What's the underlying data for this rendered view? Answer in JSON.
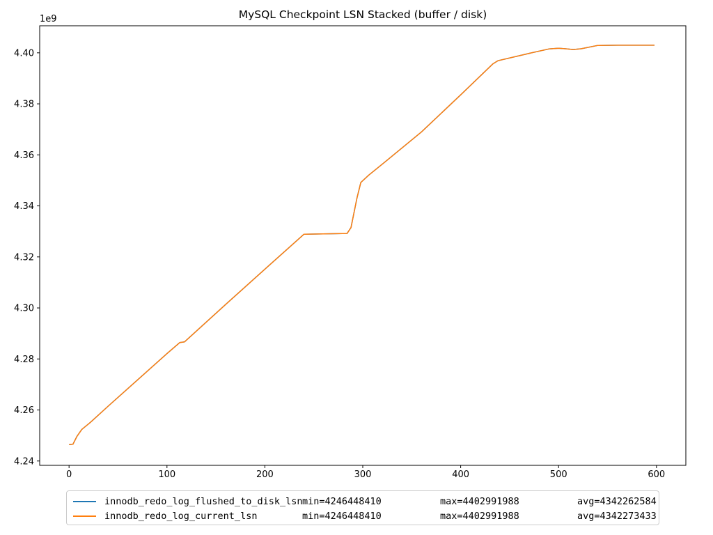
{
  "chart_data": {
    "type": "line",
    "title": "MySQL Checkpoint LSN Stacked (buffer / disk)",
    "y_offset_label": "1e9",
    "grid": false,
    "legend_position": "below-axes",
    "xlim": [
      -30,
      630
    ],
    "ylim": [
      4238300000,
      4410600000
    ],
    "xticks": [
      {
        "value": 0,
        "label": "0"
      },
      {
        "value": 100,
        "label": "100"
      },
      {
        "value": 200,
        "label": "200"
      },
      {
        "value": 300,
        "label": "300"
      },
      {
        "value": 400,
        "label": "400"
      },
      {
        "value": 500,
        "label": "500"
      },
      {
        "value": 600,
        "label": "600"
      }
    ],
    "yticks": [
      {
        "value": 4240000000,
        "label": "4.24"
      },
      {
        "value": 4260000000,
        "label": "4.26"
      },
      {
        "value": 4280000000,
        "label": "4.28"
      },
      {
        "value": 4300000000,
        "label": "4.30"
      },
      {
        "value": 4320000000,
        "label": "4.32"
      },
      {
        "value": 4340000000,
        "label": "4.34"
      },
      {
        "value": 4360000000,
        "label": "4.36"
      },
      {
        "value": 4380000000,
        "label": "4.38"
      },
      {
        "value": 4400000000,
        "label": "4.40"
      }
    ],
    "series": [
      {
        "name": "innodb_redo_log_flushed_to_disk_lsn",
        "color": "#1f77b4",
        "min": 4246448410,
        "max": 4402991988,
        "avg": 4342262584,
        "points": [
          [
            0,
            4246448410
          ],
          [
            4,
            4246600000
          ],
          [
            8,
            4249600000
          ],
          [
            13,
            4252400000
          ],
          [
            22,
            4255200000
          ],
          [
            40,
            4261500000
          ],
          [
            70,
            4271800000
          ],
          [
            100,
            4282100000
          ],
          [
            113,
            4286400000
          ],
          [
            118,
            4286700000
          ],
          [
            160,
            4301400000
          ],
          [
            200,
            4315200000
          ],
          [
            240,
            4328900000
          ],
          [
            284,
            4329200000
          ],
          [
            288,
            4331500000
          ],
          [
            294,
            4343000000
          ],
          [
            298,
            4349200000
          ],
          [
            306,
            4352000000
          ],
          [
            322,
            4357000000
          ],
          [
            360,
            4369000000
          ],
          [
            400,
            4383500000
          ],
          [
            433,
            4395700000
          ],
          [
            438,
            4396900000
          ],
          [
            470,
            4399800000
          ],
          [
            490,
            4401500000
          ],
          [
            500,
            4401800000
          ],
          [
            507,
            4401600000
          ],
          [
            515,
            4401300000
          ],
          [
            523,
            4401600000
          ],
          [
            540,
            4402900000
          ],
          [
            560,
            4402991988
          ],
          [
            598,
            4402991988
          ]
        ]
      },
      {
        "name": "innodb_redo_log_current_lsn",
        "color": "#ff7f0e",
        "min": 4246448410,
        "max": 4402991988,
        "avg": 4342273433,
        "points": [
          [
            0,
            4246448410
          ],
          [
            4,
            4246600000
          ],
          [
            8,
            4249600000
          ],
          [
            13,
            4252400000
          ],
          [
            22,
            4255200000
          ],
          [
            40,
            4261500000
          ],
          [
            70,
            4271800000
          ],
          [
            100,
            4282100000
          ],
          [
            113,
            4286400000
          ],
          [
            118,
            4286700000
          ],
          [
            160,
            4301400000
          ],
          [
            200,
            4315200000
          ],
          [
            240,
            4328900000
          ],
          [
            284,
            4329200000
          ],
          [
            288,
            4331500000
          ],
          [
            294,
            4343000000
          ],
          [
            298,
            4349200000
          ],
          [
            306,
            4352000000
          ],
          [
            322,
            4357000000
          ],
          [
            360,
            4369000000
          ],
          [
            400,
            4383500000
          ],
          [
            433,
            4395700000
          ],
          [
            438,
            4396900000
          ],
          [
            470,
            4399800000
          ],
          [
            490,
            4401500000
          ],
          [
            500,
            4401800000
          ],
          [
            507,
            4401600000
          ],
          [
            515,
            4401300000
          ],
          [
            523,
            4401600000
          ],
          [
            540,
            4402900000
          ],
          [
            560,
            4402991988
          ],
          [
            598,
            4402991988
          ]
        ]
      }
    ]
  },
  "legend": {
    "entries": [
      {
        "label": "innodb_redo_log_flushed_to_disk_lsn",
        "min": "min=4246448410",
        "max": "max=4402991988",
        "avg": "avg=4342262584"
      },
      {
        "label": "innodb_redo_log_current_lsn",
        "min": "min=4246448410",
        "max": "max=4402991988",
        "avg": "avg=4342273433"
      }
    ]
  }
}
